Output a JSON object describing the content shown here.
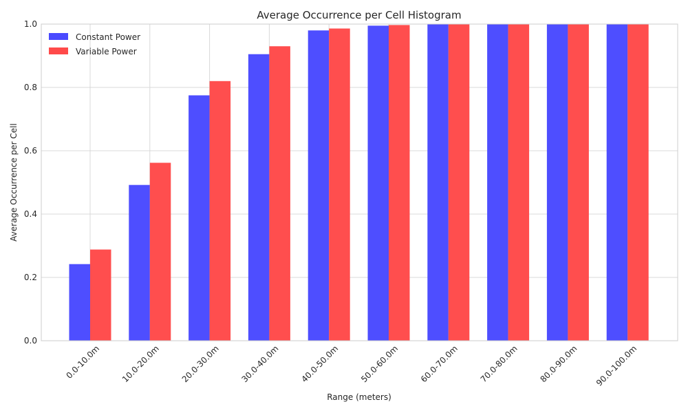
{
  "chart_data": {
    "type": "bar",
    "title": "Average Occurrence per Cell Histogram",
    "xlabel": "Range (meters)",
    "ylabel": "Average Occurrence per Cell",
    "ylim": [
      0,
      1.0
    ],
    "yticks": [
      "0.0",
      "0.2",
      "0.4",
      "0.6",
      "0.8",
      "1.0"
    ],
    "grid": true,
    "legend_position": "top-left",
    "categories": [
      "0.0-10.0m",
      "10.0-20.0m",
      "20.0-30.0m",
      "30.0-40.0m",
      "40.0-50.0m",
      "50.0-60.0m",
      "60.0-70.0m",
      "70.0-80.0m",
      "80.0-90.0m",
      "90.0-100.0m"
    ],
    "series": [
      {
        "name": "Constant Power",
        "color": "#4a4aff",
        "values": [
          0.242,
          0.492,
          0.775,
          0.905,
          0.98,
          0.995,
          1.0,
          1.0,
          1.0,
          1.0
        ]
      },
      {
        "name": "Variable Power",
        "color": "#ff4a4a",
        "values": [
          0.288,
          0.562,
          0.82,
          0.93,
          0.986,
          0.997,
          1.0,
          1.0,
          1.0,
          1.0
        ]
      }
    ]
  }
}
